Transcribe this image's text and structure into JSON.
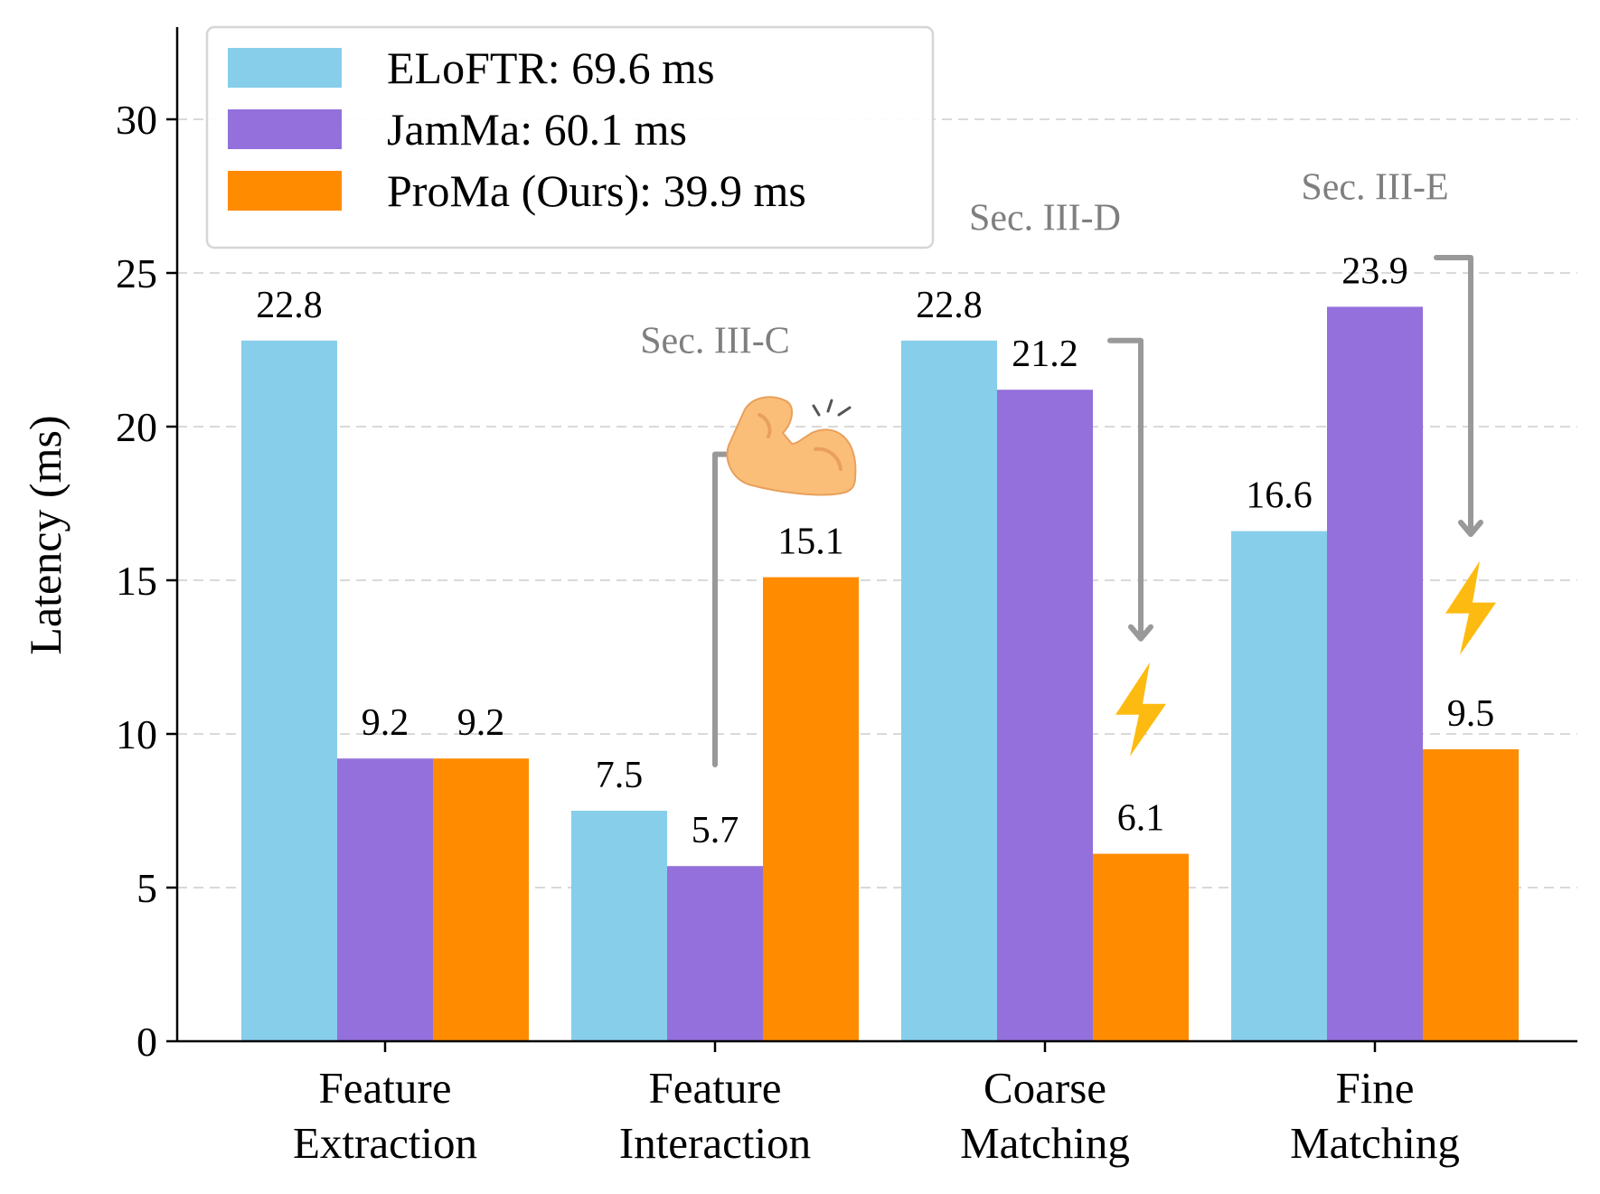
{
  "chart_data": {
    "type": "bar",
    "categories": [
      [
        "Feature",
        "Extraction"
      ],
      [
        "Feature",
        "Interaction"
      ],
      [
        "Coarse",
        "Matching"
      ],
      [
        "Fine",
        "Matching"
      ]
    ],
    "series": [
      {
        "name": "ELoFTR: 69.6 ms",
        "color": "#87ceeb",
        "values": [
          22.8,
          7.5,
          22.8,
          16.6
        ]
      },
      {
        "name": "JamMa: 60.1 ms",
        "color": "#9370db",
        "values": [
          9.2,
          5.7,
          21.2,
          23.9
        ]
      },
      {
        "name": "ProMa (Ours): 39.9 ms",
        "color": "#ff8c00",
        "values": [
          9.2,
          15.1,
          6.1,
          9.5
        ]
      }
    ],
    "data_labels": [
      [
        "22.8",
        "9.2",
        "9.2"
      ],
      [
        "7.5",
        "5.7",
        "15.1"
      ],
      [
        "22.8",
        "21.2",
        "6.1"
      ],
      [
        "16.6",
        "23.9",
        "9.5"
      ]
    ],
    "ylabel": "Latency (ms)",
    "xlabel": "",
    "ylim": [
      0,
      33
    ],
    "yticks": [
      0,
      5,
      10,
      15,
      20,
      25,
      30
    ],
    "grid": "y-dashed",
    "legend_position": "top-left",
    "annotations": [
      {
        "text": "Sec. III-C",
        "category": 1,
        "y": 22.4,
        "icon": "flexed-biceps-icon"
      },
      {
        "text": "Sec. III-D",
        "category": 2,
        "y": 26.4,
        "icon": "lightning-bolt-icon"
      },
      {
        "text": "Sec. III-E",
        "category": 3,
        "y": 27.4,
        "icon": "lightning-bolt-icon"
      }
    ],
    "arrow_color": "#999999",
    "bolt_color": "#fdbb11",
    "arm_color": "#fbbe79"
  }
}
